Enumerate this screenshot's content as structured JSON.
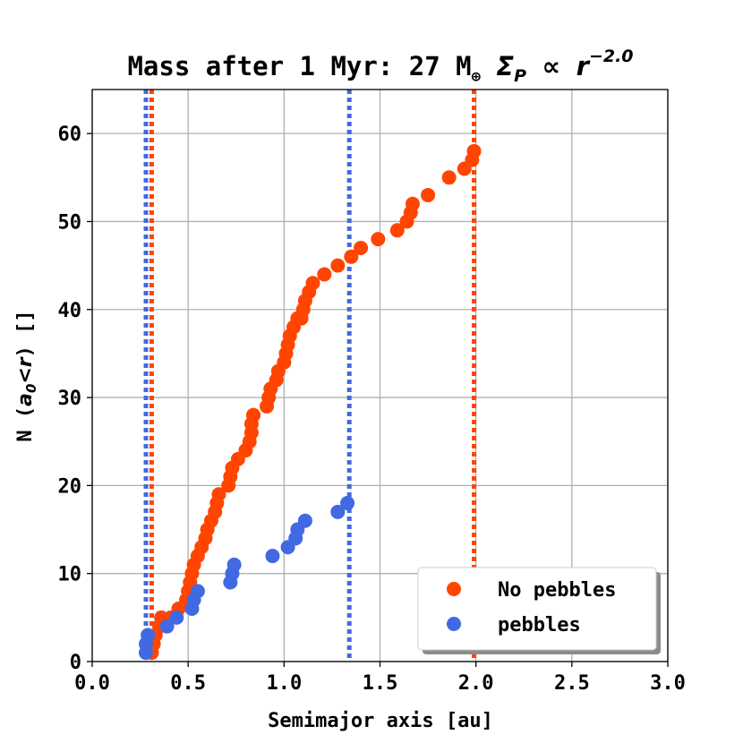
{
  "chart_data": {
    "type": "scatter",
    "title": {
      "prefix": "Mass after 1 Myr: 27 M",
      "earth_symbol": "⊕",
      "sigma": "Σ",
      "sigma_sub": "P",
      "propto": "∝",
      "r": "r",
      "exponent": "−2.0"
    },
    "xlabel": "Semimajor axis [au]",
    "ylabel": {
      "prefix": "N (",
      "a": "a",
      "a_sub": "0",
      "lt": "<",
      "r": "r",
      "suffix": ") []"
    },
    "xlim": [
      0.0,
      3.0
    ],
    "ylim": [
      0,
      65
    ],
    "xticks": [
      "0.0",
      "0.5",
      "1.0",
      "1.5",
      "2.0",
      "2.5",
      "3.0"
    ],
    "xtick_values": [
      0.0,
      0.5,
      1.0,
      1.5,
      2.0,
      2.5,
      3.0
    ],
    "yticks": [
      "0",
      "10",
      "20",
      "30",
      "40",
      "50",
      "60"
    ],
    "ytick_values": [
      0,
      10,
      20,
      30,
      40,
      50,
      60
    ],
    "grid": true,
    "legend_position": "lower-right",
    "series": [
      {
        "name": "No pebbles",
        "color": "#ff4500",
        "vlines": [
          0.31,
          1.99
        ],
        "x": [
          0.31,
          0.32,
          0.33,
          0.35,
          0.36,
          0.41,
          0.45,
          0.49,
          0.5,
          0.51,
          0.52,
          0.53,
          0.55,
          0.57,
          0.59,
          0.6,
          0.62,
          0.64,
          0.65,
          0.66,
          0.71,
          0.72,
          0.73,
          0.76,
          0.8,
          0.82,
          0.83,
          0.83,
          0.84,
          0.84,
          0.91,
          0.92,
          0.93,
          0.96,
          0.97,
          1.0,
          1.01,
          1.02,
          1.03,
          1.05,
          1.07,
          1.09,
          1.1,
          1.11,
          1.13,
          1.15,
          1.21,
          1.28,
          1.35,
          1.4,
          1.49,
          1.59,
          1.64,
          1.66,
          1.67,
          1.75,
          1.86,
          1.94,
          1.98,
          1.99
        ],
        "y": [
          1,
          2,
          3,
          4,
          5,
          5,
          6,
          7,
          8,
          9,
          10,
          11,
          12,
          13,
          14,
          15,
          16,
          17,
          18,
          19,
          20,
          21,
          22,
          23,
          24,
          25,
          26,
          27,
          28,
          28,
          29,
          30,
          31,
          32,
          33,
          34,
          35,
          36,
          37,
          38,
          39,
          39,
          40,
          41,
          42,
          43,
          44,
          45,
          46,
          47,
          48,
          49,
          50,
          51,
          52,
          53,
          55,
          56,
          57,
          58
        ]
      },
      {
        "name": "pebbles",
        "color": "#4169e1",
        "vlines": [
          0.28,
          1.34
        ],
        "x": [
          0.28,
          0.28,
          0.29,
          0.39,
          0.44,
          0.52,
          0.53,
          0.55,
          0.72,
          0.73,
          0.74,
          0.94,
          1.02,
          1.06,
          1.07,
          1.11,
          1.28,
          1.33
        ],
        "y": [
          1,
          2,
          3,
          4,
          5,
          6,
          7,
          8,
          9,
          10,
          11,
          12,
          13,
          14,
          15,
          16,
          17,
          18
        ]
      }
    ]
  }
}
